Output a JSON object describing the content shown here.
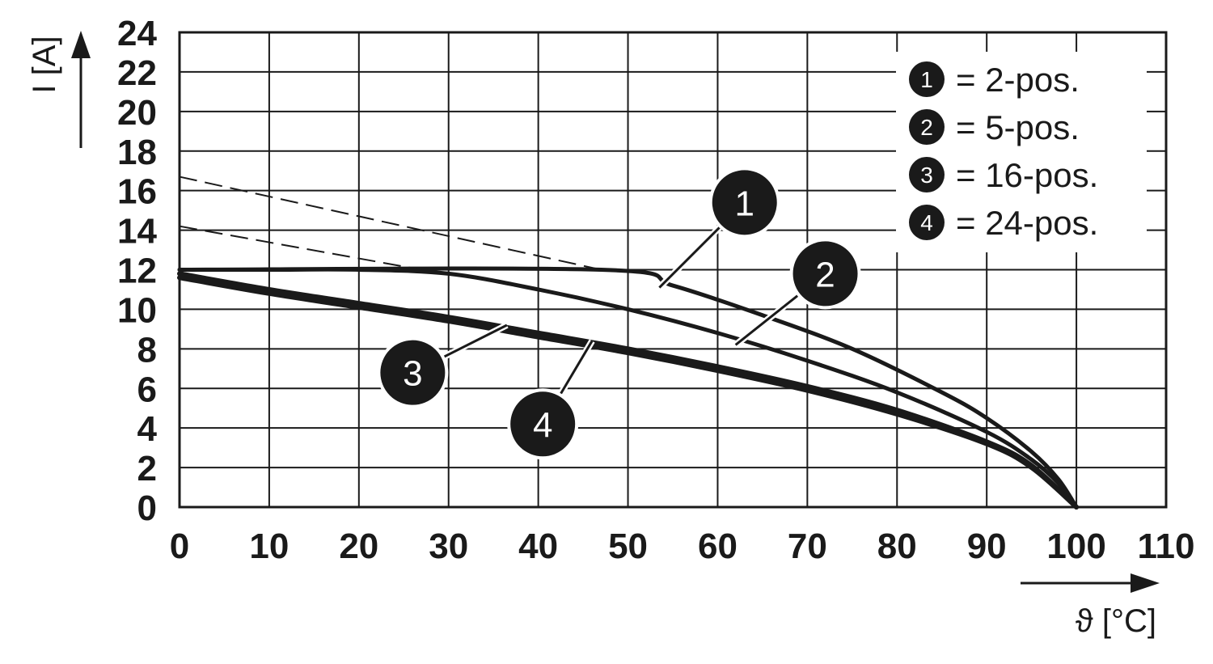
{
  "chart_data": {
    "type": "line",
    "xlabel": "ϑ [°C]",
    "ylabel": "I [A]",
    "xlim": [
      0,
      110
    ],
    "ylim": [
      0,
      24
    ],
    "xticks": [
      "0",
      "10",
      "20",
      "30",
      "40",
      "50",
      "60",
      "70",
      "80",
      "90",
      "100",
      "110"
    ],
    "yticks": [
      "0",
      "2",
      "4",
      "6",
      "8",
      "10",
      "12",
      "14",
      "16",
      "18",
      "20",
      "22",
      "24"
    ],
    "grid": true,
    "legend_position": "top-right",
    "legend": [
      {
        "marker": "1",
        "text": "= 2-pos."
      },
      {
        "marker": "2",
        "text": "= 5-pos."
      },
      {
        "marker": "3",
        "text": "= 16-pos."
      },
      {
        "marker": "4",
        "text": "= 24-pos."
      }
    ],
    "series": [
      {
        "marker": "1",
        "style": "solid",
        "x": [
          0,
          47,
          55,
          65,
          75,
          85,
          90,
          95,
          98,
          100
        ],
        "y": [
          12,
          12,
          11.2,
          9.7,
          8,
          5.8,
          4.5,
          2.8,
          1.4,
          0
        ]
      },
      {
        "marker": "2",
        "style": "solid",
        "x": [
          0,
          10,
          20,
          30,
          40,
          50,
          60,
          70,
          80,
          90,
          95,
          98,
          100
        ],
        "y": [
          12,
          12,
          12,
          11.8,
          11,
          10,
          8.8,
          7.4,
          5.8,
          3.8,
          2.4,
          1.2,
          0
        ]
      },
      {
        "marker": "3",
        "style": "solid",
        "x": [
          0,
          10,
          20,
          30,
          40,
          50,
          60,
          70,
          80,
          90,
          95,
          100
        ],
        "y": [
          11.8,
          11,
          10.3,
          9.6,
          8.8,
          8,
          7.1,
          6.1,
          4.9,
          3.3,
          2.1,
          0
        ]
      },
      {
        "marker": "4",
        "style": "solid",
        "x": [
          0,
          10,
          20,
          30,
          40,
          50,
          60,
          70,
          80,
          90,
          95,
          100
        ],
        "y": [
          11.6,
          10.8,
          10.1,
          9.4,
          8.6,
          7.8,
          6.9,
          5.9,
          4.7,
          3.2,
          2,
          0
        ]
      },
      {
        "marker": "1",
        "style": "dashed",
        "x": [
          0,
          47
        ],
        "y": [
          16.7,
          12
        ]
      },
      {
        "marker": "2",
        "style": "dashed",
        "x": [
          0,
          27
        ],
        "y": [
          14.2,
          12
        ]
      }
    ],
    "callouts": [
      {
        "marker": "1",
        "x": 63,
        "y": 15.4,
        "to_x": 53.5,
        "to_y": 11.1
      },
      {
        "marker": "2",
        "x": 72,
        "y": 11.8,
        "to_x": 62,
        "to_y": 8.2
      },
      {
        "marker": "3",
        "x": 26,
        "y": 6.8,
        "to_x": 36.5,
        "to_y": 9.2
      },
      {
        "marker": "4",
        "x": 40.5,
        "y": 4.2,
        "to_x": 46,
        "to_y": 8.4
      }
    ]
  }
}
